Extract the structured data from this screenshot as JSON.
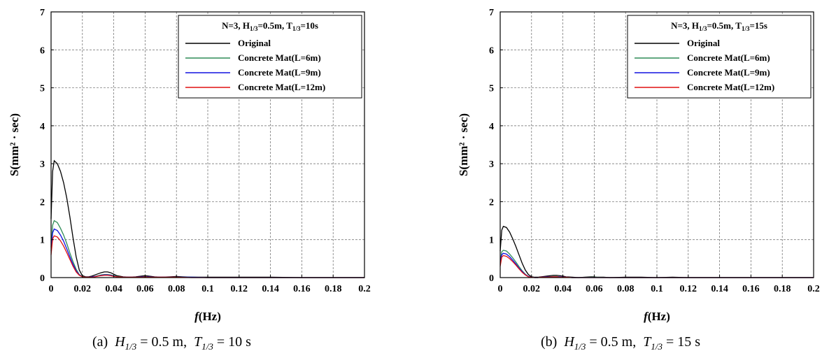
{
  "chart_data": [
    {
      "type": "line",
      "panel": "a",
      "legend_title": "N=3, H1/3=0.5m, T1/3=10s",
      "legend_title_parts": {
        "pre": "N=3, H",
        "sub1": "1/3",
        "mid": "=0.5m, T",
        "sub2": "1/3",
        "post": "=10s"
      },
      "legend_position": "top-right",
      "xlabel_italic": "f",
      "xlabel_rest": "(Hz)",
      "ylabel": "S(mm² · sec)",
      "xlim": [
        0,
        0.2
      ],
      "ylim": [
        0,
        7
      ],
      "xticks": [
        "0",
        "0.02",
        "0.04",
        "0.06",
        "0.08",
        "0.1",
        "0.12",
        "0.14",
        "0.16",
        "0.18",
        "0.2"
      ],
      "yticks": [
        "0",
        "1",
        "2",
        "3",
        "4",
        "5",
        "6",
        "7"
      ],
      "grid": true,
      "caption": {
        "label": "(a)",
        "h": "H",
        "h_sub": "1/3",
        "h_val": "= 0.5 m,",
        "t": "T",
        "t_sub": "1/3",
        "t_val": "= 10 s"
      },
      "series": [
        {
          "name": "Original",
          "color": "#000000",
          "x": [
            0,
            0.001,
            0.002,
            0.004,
            0.006,
            0.008,
            0.01,
            0.012,
            0.014,
            0.016,
            0.018,
            0.02,
            0.022,
            0.024,
            0.026,
            0.028,
            0.03,
            0.032,
            0.034,
            0.036,
            0.038,
            0.04,
            0.042,
            0.046,
            0.05,
            0.054,
            0.058,
            0.06,
            0.062,
            0.066,
            0.07,
            0.076,
            0.08,
            0.084,
            0.09,
            0.1,
            0.11,
            0.12,
            0.13,
            0.14,
            0.16,
            0.18,
            0.2
          ],
          "y": [
            1.55,
            2.8,
            3.08,
            3.0,
            2.8,
            2.5,
            2.1,
            1.6,
            1.05,
            0.55,
            0.2,
            0.05,
            0.02,
            0.02,
            0.04,
            0.07,
            0.1,
            0.13,
            0.15,
            0.15,
            0.13,
            0.09,
            0.05,
            0.02,
            0.01,
            0.02,
            0.04,
            0.05,
            0.04,
            0.02,
            0.01,
            0.02,
            0.03,
            0.02,
            0.01,
            0.01,
            0.01,
            0.01,
            0.01,
            0.01,
            0.0,
            0.0,
            0.0
          ]
        },
        {
          "name": "Concrete Mat(L=6m)",
          "color": "#2e8b57",
          "x": [
            0,
            0.001,
            0.002,
            0.004,
            0.006,
            0.008,
            0.01,
            0.012,
            0.014,
            0.016,
            0.018,
            0.02,
            0.022,
            0.024,
            0.026,
            0.028,
            0.03,
            0.032,
            0.034,
            0.036,
            0.038,
            0.04,
            0.042,
            0.046,
            0.05,
            0.054,
            0.058,
            0.06,
            0.062,
            0.066,
            0.07,
            0.076,
            0.08,
            0.084,
            0.09,
            0.1,
            0.12,
            0.14,
            0.16,
            0.18,
            0.2
          ],
          "y": [
            0.8,
            1.38,
            1.5,
            1.45,
            1.3,
            1.12,
            0.9,
            0.65,
            0.42,
            0.22,
            0.08,
            0.03,
            0.01,
            0.01,
            0.02,
            0.03,
            0.05,
            0.07,
            0.08,
            0.08,
            0.07,
            0.05,
            0.03,
            0.01,
            0.01,
            0.01,
            0.02,
            0.03,
            0.02,
            0.01,
            0.01,
            0.01,
            0.01,
            0.01,
            0.01,
            0.0,
            0.0,
            0.0,
            0.0,
            0.0,
            0.0
          ]
        },
        {
          "name": "Concrete Mat(L=9m)",
          "color": "#1010e0",
          "x": [
            0,
            0.001,
            0.002,
            0.004,
            0.006,
            0.008,
            0.01,
            0.012,
            0.014,
            0.016,
            0.018,
            0.02,
            0.022,
            0.024,
            0.026,
            0.028,
            0.03,
            0.032,
            0.034,
            0.036,
            0.038,
            0.04,
            0.042,
            0.046,
            0.05,
            0.054,
            0.058,
            0.06,
            0.062,
            0.066,
            0.07,
            0.08,
            0.09,
            0.1,
            0.12,
            0.14,
            0.16,
            0.18,
            0.2
          ],
          "y": [
            0.7,
            1.18,
            1.28,
            1.24,
            1.12,
            0.96,
            0.76,
            0.55,
            0.35,
            0.18,
            0.07,
            0.02,
            0.01,
            0.01,
            0.02,
            0.03,
            0.04,
            0.06,
            0.07,
            0.07,
            0.06,
            0.04,
            0.02,
            0.01,
            0.01,
            0.01,
            0.02,
            0.02,
            0.02,
            0.01,
            0.01,
            0.01,
            0.01,
            0.0,
            0.0,
            0.0,
            0.0,
            0.0,
            0.0
          ]
        },
        {
          "name": "Concrete Mat(L=12m)",
          "color": "#e01010",
          "x": [
            0,
            0.001,
            0.002,
            0.004,
            0.006,
            0.008,
            0.01,
            0.012,
            0.014,
            0.016,
            0.018,
            0.02,
            0.022,
            0.024,
            0.026,
            0.028,
            0.03,
            0.032,
            0.034,
            0.036,
            0.038,
            0.04,
            0.042,
            0.046,
            0.05,
            0.054,
            0.058,
            0.06,
            0.062,
            0.066,
            0.07,
            0.08,
            0.09,
            0.1,
            0.12,
            0.14,
            0.16,
            0.18,
            0.2
          ],
          "y": [
            0.6,
            1.02,
            1.1,
            1.07,
            0.97,
            0.83,
            0.66,
            0.48,
            0.3,
            0.15,
            0.06,
            0.02,
            0.01,
            0.01,
            0.01,
            0.02,
            0.04,
            0.05,
            0.06,
            0.06,
            0.05,
            0.03,
            0.02,
            0.01,
            0.01,
            0.01,
            0.01,
            0.02,
            0.01,
            0.01,
            0.01,
            0.01,
            0.0,
            0.0,
            0.0,
            0.0,
            0.0,
            0.0,
            0.0
          ]
        }
      ]
    },
    {
      "type": "line",
      "panel": "b",
      "legend_title": "N=3, H1/3=0.5m, T1/3=15s",
      "legend_title_parts": {
        "pre": "N=3, H",
        "sub1": "1/3",
        "mid": "=0.5m, T",
        "sub2": "1/3",
        "post": "=15s"
      },
      "legend_position": "top-right",
      "xlabel_italic": "f",
      "xlabel_rest": "(Hz)",
      "ylabel": "S(mm² · sec)",
      "xlim": [
        0,
        0.2
      ],
      "ylim": [
        0,
        7
      ],
      "xticks": [
        "0",
        "0.02",
        "0.04",
        "0.06",
        "0.08",
        "0.1",
        "0.12",
        "0.14",
        "0.16",
        "0.18",
        "0.2"
      ],
      "yticks": [
        "0",
        "1",
        "2",
        "3",
        "4",
        "5",
        "6",
        "7"
      ],
      "grid": true,
      "caption": {
        "label": "(b)",
        "h": "H",
        "h_sub": "1/3",
        "h_val": "= 0.5 m,",
        "t": "T",
        "t_sub": "1/3",
        "t_val": "= 15 s"
      },
      "series": [
        {
          "name": "Original",
          "color": "#000000",
          "x": [
            0,
            0.001,
            0.002,
            0.004,
            0.006,
            0.008,
            0.01,
            0.012,
            0.014,
            0.016,
            0.018,
            0.02,
            0.022,
            0.024,
            0.026,
            0.028,
            0.03,
            0.032,
            0.034,
            0.036,
            0.038,
            0.04,
            0.042,
            0.046,
            0.05,
            0.054,
            0.058,
            0.06,
            0.062,
            0.066,
            0.07,
            0.08,
            0.09,
            0.1,
            0.11,
            0.12,
            0.14,
            0.16,
            0.18,
            0.2
          ],
          "y": [
            0.7,
            1.25,
            1.35,
            1.32,
            1.2,
            1.02,
            0.82,
            0.6,
            0.38,
            0.2,
            0.08,
            0.02,
            0.01,
            0.01,
            0.02,
            0.03,
            0.04,
            0.05,
            0.06,
            0.06,
            0.05,
            0.04,
            0.02,
            0.01,
            0.0,
            0.01,
            0.02,
            0.02,
            0.01,
            0.01,
            0.0,
            0.01,
            0.01,
            0.0,
            0.01,
            0.0,
            0.0,
            0.0,
            0.0,
            0.0
          ]
        },
        {
          "name": "Concrete Mat(L=6m)",
          "color": "#2e8b57",
          "x": [
            0,
            0.001,
            0.002,
            0.004,
            0.006,
            0.008,
            0.01,
            0.012,
            0.014,
            0.016,
            0.018,
            0.02,
            0.022,
            0.024,
            0.026,
            0.03,
            0.034,
            0.036,
            0.038,
            0.042,
            0.046,
            0.05,
            0.06,
            0.07,
            0.08,
            0.1,
            0.12,
            0.14,
            0.16,
            0.18,
            0.2
          ],
          "y": [
            0.4,
            0.68,
            0.72,
            0.7,
            0.62,
            0.52,
            0.41,
            0.29,
            0.18,
            0.09,
            0.03,
            0.01,
            0.0,
            0.0,
            0.01,
            0.02,
            0.03,
            0.03,
            0.02,
            0.01,
            0.0,
            0.0,
            0.01,
            0.0,
            0.0,
            0.0,
            0.0,
            0.0,
            0.0,
            0.0,
            0.0
          ]
        },
        {
          "name": "Concrete Mat(L=9m)",
          "color": "#1010e0",
          "x": [
            0,
            0.001,
            0.002,
            0.004,
            0.006,
            0.008,
            0.01,
            0.012,
            0.014,
            0.016,
            0.018,
            0.02,
            0.022,
            0.024,
            0.026,
            0.03,
            0.034,
            0.036,
            0.038,
            0.042,
            0.046,
            0.05,
            0.06,
            0.07,
            0.08,
            0.1,
            0.12,
            0.14,
            0.16,
            0.18,
            0.2
          ],
          "y": [
            0.35,
            0.6,
            0.64,
            0.62,
            0.55,
            0.46,
            0.36,
            0.25,
            0.16,
            0.08,
            0.03,
            0.01,
            0.0,
            0.0,
            0.01,
            0.02,
            0.02,
            0.02,
            0.02,
            0.01,
            0.0,
            0.0,
            0.0,
            0.0,
            0.0,
            0.0,
            0.0,
            0.0,
            0.0,
            0.0,
            0.0
          ]
        },
        {
          "name": "Concrete Mat(L=12m)",
          "color": "#e01010",
          "x": [
            0,
            0.001,
            0.002,
            0.004,
            0.006,
            0.008,
            0.01,
            0.012,
            0.014,
            0.016,
            0.018,
            0.02,
            0.022,
            0.024,
            0.026,
            0.03,
            0.034,
            0.036,
            0.038,
            0.042,
            0.046,
            0.05,
            0.06,
            0.07,
            0.08,
            0.1,
            0.12,
            0.14,
            0.16,
            0.18,
            0.2
          ],
          "y": [
            0.3,
            0.54,
            0.58,
            0.56,
            0.5,
            0.42,
            0.33,
            0.23,
            0.14,
            0.07,
            0.02,
            0.01,
            0.0,
            0.0,
            0.01,
            0.01,
            0.02,
            0.02,
            0.01,
            0.01,
            0.0,
            0.0,
            0.0,
            0.0,
            0.0,
            0.0,
            0.0,
            0.0,
            0.0,
            0.0,
            0.0
          ]
        }
      ]
    }
  ]
}
